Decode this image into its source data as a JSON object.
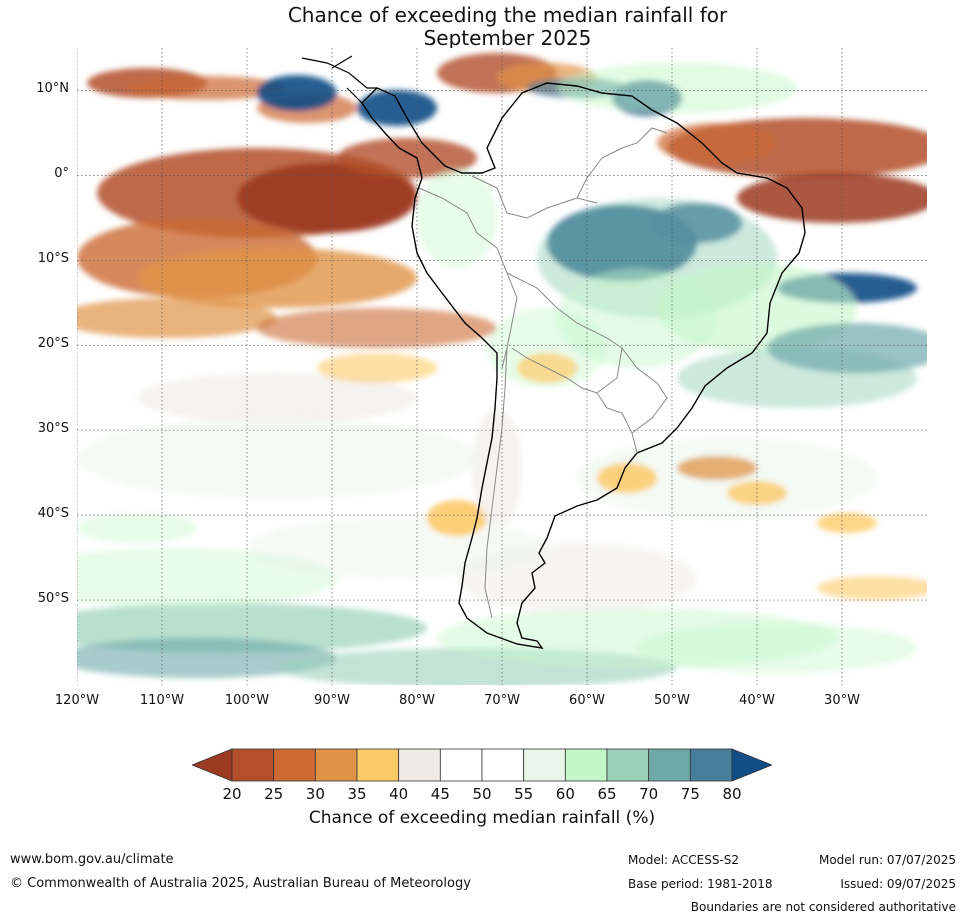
{
  "title": {
    "line1": "Chance of exceeding the median rainfall for",
    "line2": "September 2025"
  },
  "map": {
    "region": "South America",
    "lat_range": [
      -60,
      15
    ],
    "lon_range": [
      -120,
      -20
    ],
    "lat_labels": [
      "10°N",
      "0°",
      "10°S",
      "20°S",
      "30°S",
      "40°S",
      "50°S"
    ],
    "lat_values": [
      10,
      0,
      -10,
      -20,
      -30,
      -40,
      -50
    ],
    "lon_labels": [
      "120°W",
      "110°W",
      "100°W",
      "90°W",
      "80°W",
      "70°W",
      "60°W",
      "50°W",
      "40°W",
      "30°W"
    ],
    "lon_values": [
      -120,
      -110,
      -100,
      -90,
      -80,
      -70,
      -60,
      -50,
      -40,
      -30
    ],
    "gridlines": true
  },
  "colorbar": {
    "ticks": [
      "20",
      "25",
      "30",
      "35",
      "40",
      "45",
      "50",
      "55",
      "60",
      "65",
      "70",
      "75",
      "80"
    ],
    "colors": [
      "#9c3a22",
      "#b3502b",
      "#cc6a33",
      "#e09347",
      "#fdca68",
      "#eeebe6",
      "#ffffff",
      "#ffffff",
      "#e9f5e9",
      "#c4f7c8",
      "#9bd1bb",
      "#6ea8a9",
      "#487d9b",
      "#124e86"
    ],
    "label": "Chance of exceeding median rainfall (%)"
  },
  "footer": {
    "website": "www.bom.gov.au/climate",
    "copyright": "© Commonwealth of Australia 2025, Australian Bureau of Meteorology",
    "model": "Model: ACCESS-S2",
    "base_period": "Base period: 1981-2018",
    "model_run": "Model run: 07/07/2025",
    "issued": "Issued: 09/07/2025",
    "disclaimer": "Boundaries are not considered authoritative"
  }
}
